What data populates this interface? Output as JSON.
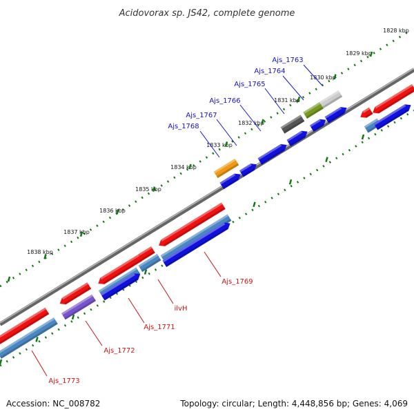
{
  "title": "Acidovorax sp. JS42, complete genome",
  "footer": {
    "accession": "Accession: NC_008782",
    "topology": "Topology: circular; Length: 4,448,856 bp; Genes: 4,069"
  },
  "colors": {
    "red_gene": "#ee1111",
    "blue_gene": "#1111dd",
    "steel_gene": "#4a86c0",
    "purple_gene": "#7755cc",
    "orange_gene": "#ee9911",
    "dark_gray_gene": "#555555",
    "olive_gene": "#779922",
    "light_gray_gene": "#cccccc",
    "backbone": "#888888",
    "dotted_guide": "#117711",
    "label_blue": "#1111cc",
    "label_red": "#cc1111"
  },
  "ticks": [
    "1828 kbp",
    "1829 kbp",
    "1830 kbp",
    "1831 kbp",
    "1832 kbp",
    "1833 kbp",
    "1834 kbp",
    "1835 kbp",
    "1836 kbp",
    "1837 kbp",
    "1838 kbp"
  ],
  "genes_outer": [
    {
      "label": "Ajs_1763",
      "color": "light_gray_gene"
    },
    {
      "label": "Ajs_1764",
      "color": "olive_gene"
    },
    {
      "label": "Ajs_1765",
      "color": "dark_gray_gene"
    },
    {
      "label": "Ajs_1766",
      "color": "blue_gene"
    },
    {
      "label": "Ajs_1767",
      "color": "blue_gene"
    },
    {
      "label": "Ajs_1768",
      "color": "orange_gene"
    }
  ],
  "genes_inner": [
    {
      "label": "Ajs_1769",
      "color": "red_gene"
    },
    {
      "label": "ilvH",
      "color": "red_gene"
    },
    {
      "label": "Ajs_1771",
      "color": "red_gene"
    },
    {
      "label": "Ajs_1772",
      "color": "red_gene"
    },
    {
      "label": "Ajs_1773",
      "color": "red_gene"
    }
  ]
}
